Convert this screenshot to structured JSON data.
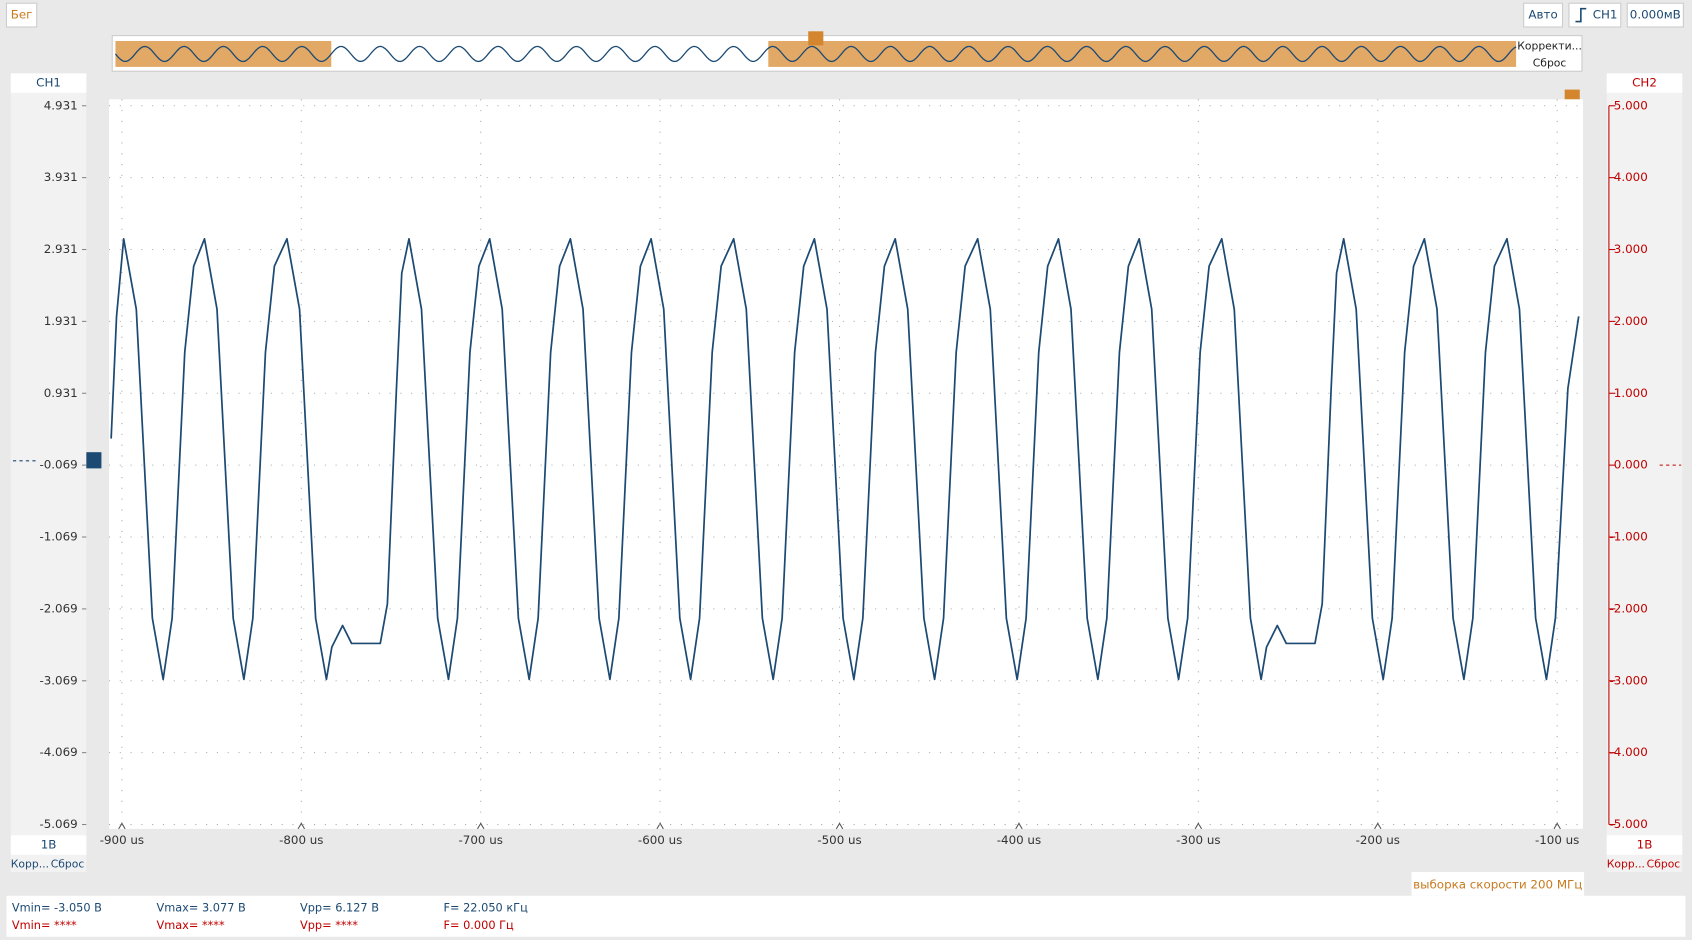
{
  "toolbar": {
    "status": "Бег",
    "mode": "Авто",
    "trigger_channel": "CH1",
    "trigger_level": "0.000мВ"
  },
  "overview": {
    "menu": [
      "Корректи...",
      "Сброс"
    ]
  },
  "ch1": {
    "scale": "1В",
    "adjust": "Корр...",
    "reset": "Сброс"
  },
  "ch2": {
    "label": "CH2",
    "scale": "1В",
    "adjust": "Корр...",
    "reset": "Сброс"
  },
  "sample_rate": "выборка скорости 200 МГц",
  "measurements": {
    "ch1": [
      "Vmin= -3.050 В",
      "Vmax= 3.077 В",
      "Vpp= 6.127 В",
      "F= 22.050 кГц"
    ],
    "ch2": [
      "Vmin= ****",
      "Vmax= ****",
      "Vpp= ****",
      "F= 0.000 Гц"
    ]
  },
  "chart_data": {
    "type": "line",
    "x": [
      -906,
      -903,
      -899,
      -892,
      -883,
      -877,
      -872,
      -865,
      -860,
      -854,
      -847,
      -838,
      -832,
      -827,
      -820,
      -815,
      -808,
      -801,
      -792,
      -786,
      -783,
      -777,
      -772,
      -756,
      -752,
      -747,
      -744,
      -740,
      -733,
      -724,
      -718,
      -713,
      -706,
      -701,
      -695,
      -688,
      -679,
      -673,
      -668,
      -661,
      -656,
      -650,
      -643,
      -634,
      -628,
      -623,
      -616,
      -611,
      -605,
      -598,
      -589,
      -583,
      -578,
      -571,
      -566,
      -559,
      -552,
      -543,
      -537,
      -532,
      -525,
      -520,
      -514,
      -507,
      -498,
      -492,
      -487,
      -480,
      -475,
      -469,
      -462,
      -453,
      -447,
      -442,
      -435,
      -430,
      -423,
      -416,
      -407,
      -401,
      -396,
      -389,
      -384,
      -378,
      -371,
      -362,
      -356,
      -351,
      -344,
      -339,
      -333,
      -326,
      -317,
      -311,
      -306,
      -299,
      -294,
      -287,
      -280,
      -271,
      -265,
      -262,
      -256,
      -251,
      -235,
      -231,
      -226,
      -223,
      -219,
      -212,
      -203,
      -197,
      -192,
      -185,
      -180,
      -174,
      -167,
      -158,
      -152,
      -147,
      -140,
      -135,
      -128,
      -121,
      -112,
      -106,
      -101,
      -94,
      -88
    ],
    "series": [
      {
        "name": "CH1",
        "color": "#1c4a73",
        "values": [
          0.3,
          2.0,
          3.08,
          2.1,
          -2.2,
          -3.05,
          -2.2,
          1.5,
          2.7,
          3.08,
          2.1,
          -2.2,
          -3.05,
          -2.2,
          1.5,
          2.7,
          3.08,
          2.1,
          -2.2,
          -3.05,
          -2.6,
          -2.3,
          -2.55,
          -2.55,
          -2.0,
          1.0,
          2.6,
          3.08,
          2.1,
          -2.2,
          -3.05,
          -2.2,
          1.5,
          2.7,
          3.08,
          2.1,
          -2.2,
          -3.05,
          -2.2,
          1.5,
          2.7,
          3.08,
          2.1,
          -2.2,
          -3.05,
          -2.2,
          1.5,
          2.7,
          3.08,
          2.1,
          -2.2,
          -3.05,
          -2.2,
          1.5,
          2.7,
          3.08,
          2.1,
          -2.2,
          -3.05,
          -2.2,
          1.5,
          2.7,
          3.08,
          2.1,
          -2.2,
          -3.05,
          -2.2,
          1.5,
          2.7,
          3.08,
          2.1,
          -2.2,
          -3.05,
          -2.2,
          1.5,
          2.7,
          3.08,
          2.1,
          -2.2,
          -3.05,
          -2.2,
          1.5,
          2.7,
          3.08,
          2.1,
          -2.2,
          -3.05,
          -2.2,
          1.5,
          2.7,
          3.08,
          2.1,
          -2.2,
          -3.05,
          -2.2,
          1.5,
          2.7,
          3.08,
          2.1,
          -2.2,
          -3.05,
          -2.6,
          -2.3,
          -2.55,
          -2.55,
          -2.0,
          1.0,
          2.6,
          3.08,
          2.1,
          -2.2,
          -3.05,
          -2.2,
          1.5,
          2.7,
          3.08,
          2.1,
          -2.2,
          -3.05,
          -2.2,
          1.5,
          2.7,
          3.08,
          2.1,
          -2.2,
          -3.05,
          -2.2,
          1.0,
          2.0
        ]
      }
    ],
    "xlim": [
      -907.2,
      -85.6
    ],
    "xticks": [
      {
        "value": -900,
        "label": "-900 us"
      },
      {
        "value": -800,
        "label": "-800 us"
      },
      {
        "value": -700,
        "label": "-700 us"
      },
      {
        "value": -600,
        "label": "-600 us"
      },
      {
        "value": -500,
        "label": "-500 us"
      },
      {
        "value": -400,
        "label": "-400 us"
      },
      {
        "value": -300,
        "label": "-300 us"
      },
      {
        "value": -200,
        "label": "-200 us"
      },
      {
        "value": -100,
        "label": "-100 us"
      }
    ],
    "ylim": [
      -5.069,
      4.931
    ],
    "yticks": [
      4.931,
      3.931,
      2.931,
      1.931,
      0.931,
      -0.069,
      -1.069,
      -2.069,
      -3.069,
      -4.069,
      -5.069
    ],
    "y2lim": [
      -5,
      5
    ],
    "y2ticks": [
      {
        "value": 5,
        "label": "5.000"
      },
      {
        "value": 4,
        "label": "4.000"
      },
      {
        "value": 3,
        "label": "3.000"
      },
      {
        "value": 2,
        "label": "2.000"
      },
      {
        "value": 1,
        "label": "1.000"
      },
      {
        "value": 0,
        "label": "0.000"
      },
      {
        "value": -1,
        "label": "-1.000"
      },
      {
        "value": -2,
        "label": "-2.000"
      },
      {
        "value": -3,
        "label": "-3.000"
      },
      {
        "value": -4,
        "label": "-4.000"
      },
      {
        "value": -5,
        "label": "-5.000"
      }
    ],
    "y2color": "#c00000",
    "grid": true
  }
}
